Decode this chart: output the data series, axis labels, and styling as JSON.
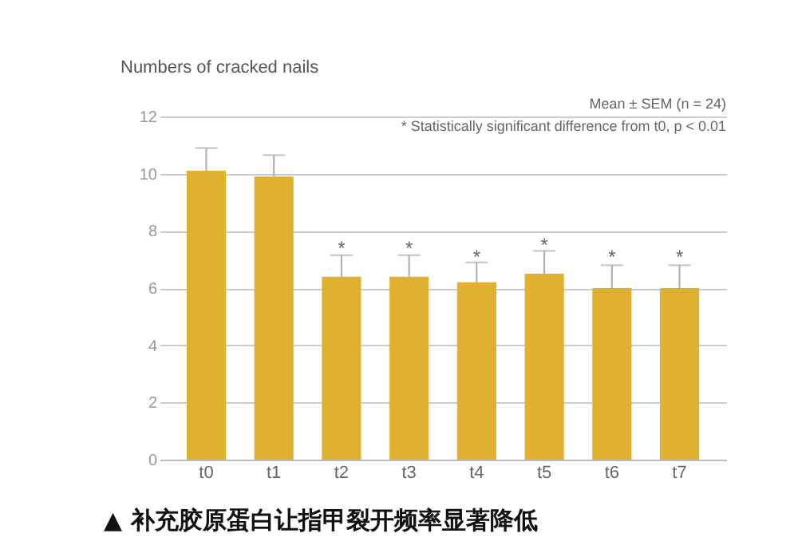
{
  "chart_data": {
    "type": "bar",
    "title": "▲ 补充胶原蛋白让指甲裂开频率显著降低",
    "ylabel": "Numbers of cracked nails",
    "categories": [
      "t0",
      "t1",
      "t2",
      "t3",
      "t4",
      "t5",
      "t6",
      "t7"
    ],
    "values": [
      10.1,
      9.9,
      6.4,
      6.4,
      6.2,
      6.5,
      6.0,
      6.0
    ],
    "errors": [
      0.8,
      0.75,
      0.75,
      0.75,
      0.7,
      0.8,
      0.8,
      0.8
    ],
    "color": "#e0b030",
    "ylim": [
      0,
      12
    ],
    "yticks": [
      0,
      2,
      4,
      6,
      8,
      10,
      12
    ],
    "grid": "y",
    "annotations": [
      "Mean ± SEM (n = 24)",
      "* Statistically significant difference from t0, p < 0.01",
      {
        "text": "*",
        "x": "t2",
        "y": 7.4
      },
      {
        "text": "*",
        "x": "t3",
        "y": 7.4
      },
      {
        "text": "*",
        "x": "t4",
        "y": 7.1
      },
      {
        "text": "*",
        "x": "t5",
        "y": 7.5
      },
      {
        "text": "*",
        "x": "t6",
        "y": 7.1
      },
      {
        "text": "*",
        "x": "t7",
        "y": 7.1
      }
    ]
  }
}
